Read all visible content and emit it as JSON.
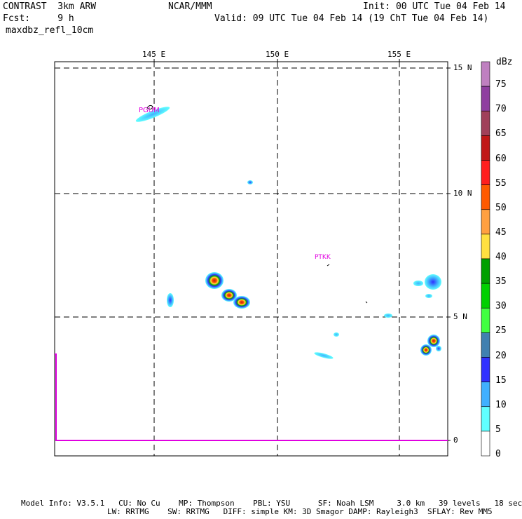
{
  "header": {
    "line1_left": "CONTRAST  3km ARW",
    "line1_center": "NCAR/MMM",
    "line1_right": "Init: 00 UTC Tue 04 Feb 14",
    "line2_left": "Fcst:     9 h",
    "line2_right": "Valid: 09 UTC Tue 04 Feb 14 (19 ChT Tue 04 Feb 14)",
    "line3_left": "maxdbz_refl_10cm"
  },
  "map": {
    "lon_labels": [
      "145 E",
      "150 E",
      "155 E"
    ],
    "lat_labels": [
      "15 N",
      "10 N",
      "5 N",
      "0"
    ],
    "stations": [
      "PGUM",
      "PTKK"
    ]
  },
  "colorbar": {
    "unit": "dBz",
    "labels": [
      "75",
      "70",
      "65",
      "60",
      "55",
      "50",
      "45",
      "40",
      "35",
      "30",
      "25",
      "20",
      "15",
      "10",
      "5",
      "0"
    ],
    "colors": [
      "#bf80c0",
      "#8f3fa0",
      "#a0405a",
      "#c01818",
      "#ff1e1e",
      "#ff5a00",
      "#ffa040",
      "#ffe040",
      "#00a000",
      "#00d000",
      "#40ff40",
      "#4080b0",
      "#3030ff",
      "#40b0ff",
      "#60ffff",
      "#ffffff"
    ]
  },
  "footer": {
    "line1": "Model Info: V3.5.1   CU: No Cu    MP: Thompson    PBL: YSU      SF: Noah LSM     3.0 km   39 levels   18 sec",
    "line2": "LW: RRTMG    SW: RRTMG   DIFF: simple KM: 3D Smagor DAMP: Rayleigh3  SFLAY: Rev MM5"
  }
}
